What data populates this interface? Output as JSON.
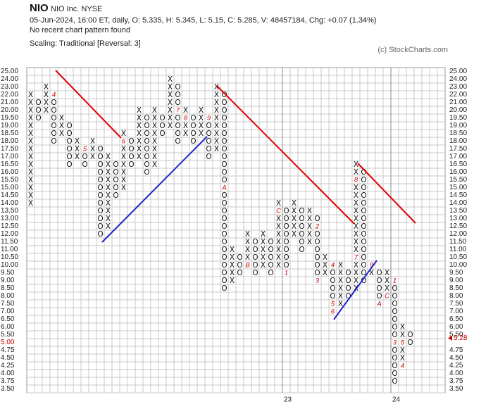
{
  "chart_data": {
    "type": "point_and_figure",
    "symbol_name": "NIO",
    "company": "NIO Inc.  NYSE",
    "quote_line": "05-Jun-2024, 16:00 ET, daily, O: 5.335, H: 5.345, L: 5.15, C: 5.285, V: 48457184, Chg: +0.07 (1.34%)",
    "pattern_note": "No recent chart pattern found",
    "scaling": "Scaling: Traditional [Reversal: 3]",
    "copyright": "(c) StockCharts.com",
    "symbol_color": "#111111",
    "month_color": "#cc0000",
    "grid": true,
    "current_box": 5,
    "last_price": {
      "value": 5.28,
      "label": "5.28"
    },
    "yticks": [
      {
        "value": 25,
        "label": "25.00"
      },
      {
        "value": 24,
        "label": "24.00"
      },
      {
        "value": 23,
        "label": "23.00"
      },
      {
        "value": 22,
        "label": "22.00"
      },
      {
        "value": 21,
        "label": "21.00"
      },
      {
        "value": 20,
        "label": "20.00"
      },
      {
        "value": 19.5,
        "label": "19.50"
      },
      {
        "value": 19,
        "label": "19.00"
      },
      {
        "value": 18.5,
        "label": "18.50"
      },
      {
        "value": 18,
        "label": "18.00"
      },
      {
        "value": 17.5,
        "label": "17.50"
      },
      {
        "value": 17,
        "label": "17.00"
      },
      {
        "value": 16.5,
        "label": "16.50"
      },
      {
        "value": 16,
        "label": "16.00"
      },
      {
        "value": 15.5,
        "label": "15.50"
      },
      {
        "value": 15,
        "label": "15.00"
      },
      {
        "value": 14.5,
        "label": "14.50"
      },
      {
        "value": 14,
        "label": "14.00"
      },
      {
        "value": 13.5,
        "label": "13.50"
      },
      {
        "value": 13,
        "label": "13.00"
      },
      {
        "value": 12.5,
        "label": "12.50"
      },
      {
        "value": 12,
        "label": "12.00"
      },
      {
        "value": 11.5,
        "label": "11.50"
      },
      {
        "value": 11,
        "label": "11.00"
      },
      {
        "value": 10.5,
        "label": "10.50"
      },
      {
        "value": 10,
        "label": "10.00"
      },
      {
        "value": 9.5,
        "label": "9.50"
      },
      {
        "value": 9,
        "label": "9.00"
      },
      {
        "value": 8.5,
        "label": "8.50"
      },
      {
        "value": 8,
        "label": "8.00"
      },
      {
        "value": 7.5,
        "label": "7.50"
      },
      {
        "value": 7,
        "label": "7.00"
      },
      {
        "value": 6.5,
        "label": "6.50"
      },
      {
        "value": 6,
        "label": "6.00"
      },
      {
        "value": 5.5,
        "label": "5.50"
      },
      {
        "value": 5,
        "label": "5.00"
      },
      {
        "value": 4.75,
        "label": "4.75"
      },
      {
        "value": 4.5,
        "label": "4.50"
      },
      {
        "value": 4.25,
        "label": "4.25"
      },
      {
        "value": 4,
        "label": "4.00"
      },
      {
        "value": 3.75,
        "label": "3.75"
      },
      {
        "value": 3.5,
        "label": "3.50"
      }
    ],
    "y2ticks": [
      {
        "value": 25,
        "label": "25.00"
      },
      {
        "value": 24,
        "label": "24.00"
      },
      {
        "value": 23,
        "label": "23.00"
      },
      {
        "value": 22,
        "label": "22.00"
      },
      {
        "value": 21,
        "label": "21.00"
      },
      {
        "value": 20,
        "label": "20.00"
      },
      {
        "value": 19.5,
        "label": "19.50"
      },
      {
        "value": 19,
        "label": "19.00"
      },
      {
        "value": 18.5,
        "label": "18.50"
      },
      {
        "value": 18,
        "label": "18.00"
      },
      {
        "value": 17.5,
        "label": "17.50"
      },
      {
        "value": 17,
        "label": "17.00"
      },
      {
        "value": 16.5,
        "label": "16.50"
      },
      {
        "value": 16,
        "label": "16.00"
      },
      {
        "value": 15.5,
        "label": "15.50"
      },
      {
        "value": 15,
        "label": "15.00"
      },
      {
        "value": 14.5,
        "label": "14.50"
      },
      {
        "value": 14,
        "label": "14.00"
      },
      {
        "value": 13.5,
        "label": "13.50"
      },
      {
        "value": 13,
        "label": "13.00"
      },
      {
        "value": 12.5,
        "label": "12.50"
      },
      {
        "value": 12,
        "label": "12.00"
      },
      {
        "value": 11.5,
        "label": "11.50"
      },
      {
        "value": 11,
        "label": "11.00"
      },
      {
        "value": 10.5,
        "label": "10.50"
      },
      {
        "value": 10,
        "label": "10.00"
      },
      {
        "value": 9.5,
        "label": "9.50"
      },
      {
        "value": 9,
        "label": "9.00"
      },
      {
        "value": 8.5,
        "label": "8.50"
      },
      {
        "value": 8,
        "label": "8.00"
      },
      {
        "value": 7.5,
        "label": "7.50"
      },
      {
        "value": 7,
        "label": "7.00"
      },
      {
        "value": 6.5,
        "label": "6.50"
      },
      {
        "value": 6,
        "label": "6.00"
      },
      {
        "value": 5.5,
        "label": "5.50"
      },
      {
        "value": 4.75,
        "label": "4.75"
      },
      {
        "value": 4.5,
        "label": "4.50"
      },
      {
        "value": 4.25,
        "label": "4.25"
      },
      {
        "value": 4,
        "label": "4.00"
      },
      {
        "value": 3.75,
        "label": "3.75"
      },
      {
        "value": 3.5,
        "label": "3.50"
      }
    ],
    "x_labels": [
      {
        "column": 33,
        "label": "23"
      },
      {
        "column": 47,
        "label": "24"
      }
    ],
    "columns": [
      {
        "symbol": "X",
        "low": 14,
        "high": 22
      },
      {
        "symbol": "O",
        "low": 19.5,
        "high": 21
      },
      {
        "symbol": "X",
        "low": 20,
        "high": 23
      },
      {
        "symbol": "O",
        "low": 18,
        "high": 22,
        "months": [
          {
            "price": 22,
            "label": "4"
          }
        ]
      },
      {
        "symbol": "X",
        "low": 18.5,
        "high": 19.5
      },
      {
        "symbol": "O",
        "low": 16.5,
        "high": 19
      },
      {
        "symbol": "X",
        "low": 17,
        "high": 18
      },
      {
        "symbol": "O",
        "low": 16.5,
        "high": 17.5,
        "months": [
          {
            "price": 17.5,
            "label": "5"
          }
        ]
      },
      {
        "symbol": "X",
        "low": 17,
        "high": 18
      },
      {
        "symbol": "O",
        "low": 12,
        "high": 17.5
      },
      {
        "symbol": "X",
        "low": 12.5,
        "high": 17
      },
      {
        "symbol": "O",
        "low": 14.5,
        "high": 16.5
      },
      {
        "symbol": "X",
        "low": 15,
        "high": 18.5,
        "months": [
          {
            "price": 18,
            "label": "6"
          }
        ]
      },
      {
        "symbol": "O",
        "low": 16.5,
        "high": 18
      },
      {
        "symbol": "X",
        "low": 17,
        "high": 20
      },
      {
        "symbol": "O",
        "low": 16,
        "high": 19.5
      },
      {
        "symbol": "X",
        "low": 16.5,
        "high": 20
      },
      {
        "symbol": "O",
        "low": 18.5,
        "high": 19.5
      },
      {
        "symbol": "X",
        "low": 19,
        "high": 24
      },
      {
        "symbol": "O",
        "low": 18,
        "high": 23,
        "months": [
          {
            "price": 20,
            "label": "7"
          }
        ]
      },
      {
        "symbol": "X",
        "low": 18.5,
        "high": 20,
        "months": [
          {
            "price": 19.5,
            "label": "8"
          }
        ]
      },
      {
        "symbol": "O",
        "low": 18,
        "high": 19.5
      },
      {
        "symbol": "X",
        "low": 18.5,
        "high": 20
      },
      {
        "symbol": "O",
        "low": 17,
        "high": 19.5,
        "months": [
          {
            "price": 19.5,
            "label": "9"
          }
        ]
      },
      {
        "symbol": "X",
        "low": 17.5,
        "high": 23
      },
      {
        "symbol": "O",
        "low": 8.5,
        "high": 22,
        "months": [
          {
            "price": 15,
            "label": "A"
          }
        ]
      },
      {
        "symbol": "X",
        "low": 9,
        "high": 11
      },
      {
        "symbol": "O",
        "low": 9.5,
        "high": 10.5
      },
      {
        "symbol": "X",
        "low": 10,
        "high": 12,
        "months": [
          {
            "price": 10,
            "label": "B"
          }
        ]
      },
      {
        "symbol": "O",
        "low": 9.5,
        "high": 11.5
      },
      {
        "symbol": "X",
        "low": 10,
        "high": 12
      },
      {
        "symbol": "O",
        "low": 9.5,
        "high": 11.5
      },
      {
        "symbol": "X",
        "low": 10,
        "high": 14,
        "months": [
          {
            "price": 13.5,
            "label": "C"
          }
        ]
      },
      {
        "symbol": "O",
        "low": 9.5,
        "high": 13.5,
        "months": [
          {
            "price": 9.5,
            "label": "1"
          }
        ]
      },
      {
        "symbol": "X",
        "low": 12,
        "high": 14
      },
      {
        "symbol": "O",
        "low": 11,
        "high": 13.5
      },
      {
        "symbol": "X",
        "low": 11.5,
        "high": 13.5
      },
      {
        "symbol": "O",
        "low": 9,
        "high": 13,
        "months": [
          {
            "price": 12.5,
            "label": "2"
          },
          {
            "price": 9,
            "label": "3"
          }
        ]
      },
      {
        "symbol": "X",
        "low": 9.5,
        "high": 10.5
      },
      {
        "symbol": "O",
        "low": 7,
        "high": 10,
        "months": [
          {
            "price": 10,
            "label": "4"
          },
          {
            "price": 7.5,
            "label": "5"
          },
          {
            "price": 7,
            "label": "6"
          }
        ]
      },
      {
        "symbol": "X",
        "low": 7.5,
        "high": 10
      },
      {
        "symbol": "O",
        "low": 8,
        "high": 9.5
      },
      {
        "symbol": "X",
        "low": 8.5,
        "high": 16.5,
        "months": [
          {
            "price": 10.5,
            "label": "7"
          },
          {
            "price": 15.5,
            "label": "8"
          }
        ]
      },
      {
        "symbol": "O",
        "low": 9,
        "high": 16
      },
      {
        "symbol": "X",
        "low": 9.5,
        "high": 10,
        "months": [
          {
            "price": 10,
            "label": "9"
          }
        ]
      },
      {
        "symbol": "O",
        "low": 7.5,
        "high": 9.5,
        "months": [
          {
            "price": 7.5,
            "label": "A"
          }
        ]
      },
      {
        "symbol": "X",
        "low": 8,
        "high": 9.5,
        "months": [
          {
            "price": 8,
            "label": "C"
          }
        ]
      },
      {
        "symbol": "O",
        "low": 3.75,
        "high": 9,
        "months": [
          {
            "price": 9,
            "label": "1"
          },
          {
            "price": 5,
            "label": "3"
          }
        ]
      },
      {
        "symbol": "X",
        "low": 4.25,
        "high": 6,
        "months": [
          {
            "price": 4.25,
            "label": "4"
          },
          {
            "price": 5,
            "label": "5"
          }
        ]
      },
      {
        "symbol": "O",
        "low": 5,
        "high": 5.5
      }
    ]
  }
}
